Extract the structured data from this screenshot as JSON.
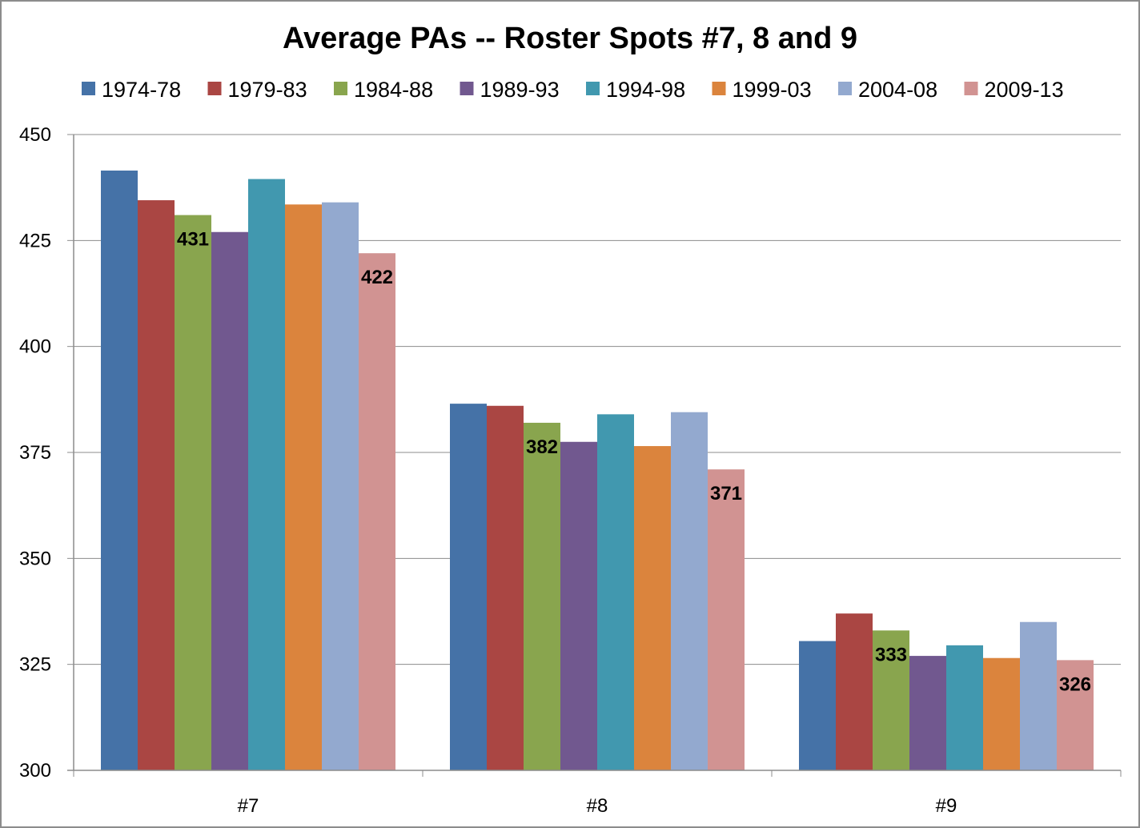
{
  "chart_data": {
    "type": "bar",
    "title": "Average PAs -- Roster Spots #7, 8 and 9",
    "xlabel": "",
    "ylabel": "",
    "ylim": [
      300,
      450
    ],
    "yticks": [
      300,
      325,
      350,
      375,
      400,
      425,
      450
    ],
    "grid": true,
    "legend_position": "top",
    "categories": [
      "#7",
      "#8",
      "#9"
    ],
    "series": [
      {
        "name": "1974-78",
        "color": "#4572a7",
        "values": [
          441.5,
          386.5,
          330.5
        ],
        "labels": [
          "",
          "",
          ""
        ]
      },
      {
        "name": "1979-83",
        "color": "#aa4643",
        "values": [
          434.5,
          386,
          337
        ],
        "labels": [
          "",
          "",
          ""
        ]
      },
      {
        "name": "1984-88",
        "color": "#89a54e",
        "values": [
          431,
          382,
          333
        ],
        "labels": [
          "431",
          "382",
          "333"
        ]
      },
      {
        "name": "1989-93",
        "color": "#71588f",
        "values": [
          427,
          377.5,
          327
        ],
        "labels": [
          "",
          "",
          ""
        ]
      },
      {
        "name": "1994-98",
        "color": "#4198af",
        "values": [
          439.5,
          384,
          329.5
        ],
        "labels": [
          "",
          "",
          ""
        ]
      },
      {
        "name": "1999-03",
        "color": "#db843d",
        "values": [
          433.5,
          376.5,
          326.5
        ],
        "labels": [
          "",
          "",
          ""
        ]
      },
      {
        "name": "2004-08",
        "color": "#93a9cf",
        "values": [
          434,
          384.5,
          335
        ],
        "labels": [
          "",
          "",
          ""
        ]
      },
      {
        "name": "2009-13",
        "color": "#d19392",
        "values": [
          422,
          371,
          326
        ],
        "labels": [
          "422",
          "371",
          "326"
        ]
      }
    ]
  }
}
